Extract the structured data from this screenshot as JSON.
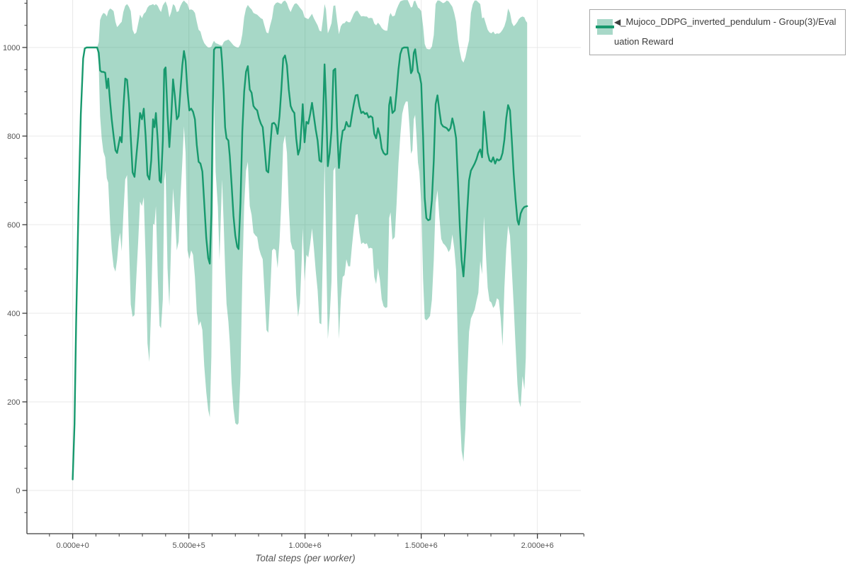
{
  "figure": {
    "colors": {
      "line": "#17996d",
      "band_fill": "rgba(23,153,109,0.38)",
      "band_solid": "#a8d8c8",
      "grid": "#e8e8e8",
      "axis": "#3c3c3c",
      "tick_label": "#545454",
      "axis_title": "#555555",
      "legend_border": "#a6a6a6",
      "legend_text": "#3b3b3b",
      "background": "#ffffff"
    }
  },
  "legend": {
    "collapse_glyph": "◀",
    "label": "_Mujoco_DDPG_inverted_pendulum - Group(3)/Evaluation Reward"
  },
  "chart_data": {
    "type": "line",
    "title": "",
    "xlabel": "Total steps (per worker)",
    "ylabel": "",
    "legend_position": "top-right",
    "grid": true,
    "series_name": "_Mujoco_DDPG_inverted_pendulum - Group(3)/Evaluation Reward",
    "band_meaning": "min-max range across Group(3) runs",
    "x_tick_values": [
      0,
      500000,
      1000000,
      1500000,
      2000000
    ],
    "x_tick_labels": [
      "0.000e+0",
      "5.000e+5",
      "1.000e+6",
      "1.500e+6",
      "2.000e+6"
    ],
    "x_minor_step": 100000,
    "y_tick_values": [
      0,
      200,
      400,
      600,
      800,
      1000
    ],
    "y_tick_labels": [
      "0",
      "200",
      "400",
      "600",
      "800",
      "1000"
    ],
    "y_minor_step": 50,
    "x_visible_domain": [
      -197000,
      2187000
    ],
    "y_visible_domain": [
      -97.6,
      1107.2
    ],
    "xlim": [
      0,
      1956000
    ],
    "ylim_data": [
      25,
      1000
    ],
    "points_format": [
      "step",
      "mean",
      "band_lower",
      "band_upper"
    ],
    "points": [
      [
        0,
        25,
        25,
        25
      ],
      [
        8000,
        150,
        140,
        160
      ],
      [
        15000,
        380,
        365,
        395
      ],
      [
        25000,
        640,
        625,
        655
      ],
      [
        35000,
        850,
        838,
        862
      ],
      [
        45000,
        975,
        968,
        982
      ],
      [
        52000,
        998,
        996,
        1000
      ],
      [
        60000,
        1000,
        1000,
        1000
      ],
      [
        75000,
        1000,
        1000,
        1000
      ],
      [
        90000,
        1000,
        1000,
        1000
      ],
      [
        105000,
        1000,
        1000,
        1000
      ],
      [
        112000,
        988,
        960,
        1012
      ],
      [
        118000,
        948,
        845,
        1062
      ],
      [
        125000,
        945,
        795,
        1072
      ],
      [
        132000,
        945,
        765,
        1078
      ],
      [
        140000,
        943,
        752,
        1076
      ],
      [
        147000,
        908,
        705,
        1070
      ],
      [
        153000,
        930,
        695,
        1082
      ],
      [
        161000,
        878,
        605,
        1088
      ],
      [
        168000,
        838,
        545,
        1086
      ],
      [
        176000,
        800,
        505,
        1082
      ],
      [
        184000,
        768,
        494,
        1058
      ],
      [
        191000,
        762,
        520,
        1046
      ],
      [
        198000,
        782,
        562,
        1050
      ],
      [
        204000,
        798,
        582,
        1054
      ],
      [
        211000,
        786,
        540,
        1058
      ],
      [
        218000,
        862,
        622,
        1080
      ],
      [
        226000,
        930,
        702,
        1094
      ],
      [
        234000,
        927,
        712,
        1098
      ],
      [
        242000,
        878,
        565,
        1092
      ],
      [
        250000,
        798,
        420,
        1082
      ],
      [
        258000,
        718,
        392,
        1040
      ],
      [
        266000,
        708,
        396,
        1030
      ],
      [
        274000,
        755,
        482,
        1034
      ],
      [
        282000,
        800,
        562,
        1054
      ],
      [
        290000,
        852,
        652,
        1074
      ],
      [
        298000,
        838,
        642,
        1066
      ],
      [
        306000,
        862,
        662,
        1076
      ],
      [
        314000,
        800,
        522,
        1080
      ],
      [
        322000,
        712,
        332,
        1090
      ],
      [
        330000,
        702,
        290,
        1095
      ],
      [
        338000,
        745,
        422,
        1096
      ],
      [
        346000,
        838,
        602,
        1098
      ],
      [
        352000,
        820,
        600,
        1095
      ],
      [
        358000,
        852,
        642,
        1098
      ],
      [
        366000,
        790,
        482,
        1094
      ],
      [
        374000,
        700,
        372,
        1085
      ],
      [
        380000,
        695,
        366,
        1080
      ],
      [
        388000,
        790,
        432,
        1095
      ],
      [
        394000,
        950,
        700,
        1100
      ],
      [
        400000,
        955,
        722,
        1104
      ],
      [
        408000,
        850,
        502,
        1092
      ],
      [
        416000,
        775,
        416,
        1068
      ],
      [
        424000,
        840,
        562,
        1080
      ],
      [
        432000,
        928,
        682,
        1098
      ],
      [
        440000,
        890,
        622,
        1094
      ],
      [
        448000,
        838,
        542,
        1080
      ],
      [
        456000,
        845,
        562,
        1082
      ],
      [
        464000,
        905,
        662,
        1094
      ],
      [
        472000,
        960,
        742,
        1102
      ],
      [
        479000,
        992,
        822,
        1106
      ],
      [
        486000,
        970,
        762,
        1102
      ],
      [
        494000,
        900,
        542,
        1098
      ],
      [
        502000,
        858,
        522,
        1085
      ],
      [
        510000,
        862,
        542,
        1086
      ],
      [
        518000,
        855,
        532,
        1084
      ],
      [
        526000,
        838,
        482,
        1078
      ],
      [
        534000,
        780,
        402,
        1058
      ],
      [
        542000,
        742,
        372,
        1040
      ],
      [
        550000,
        738,
        382,
        1036
      ],
      [
        558000,
        720,
        362,
        1020
      ],
      [
        566000,
        650,
        282,
        1010
      ],
      [
        575000,
        570,
        222,
        1004
      ],
      [
        583000,
        525,
        182,
        1000
      ],
      [
        590000,
        512,
        165,
        1000
      ],
      [
        597000,
        625,
        302,
        1002
      ],
      [
        603000,
        862,
        602,
        1010
      ],
      [
        608000,
        995,
        890,
        1015
      ],
      [
        615000,
        1000,
        720,
        1010
      ],
      [
        625000,
        1000,
        640,
        1008
      ],
      [
        632000,
        1000,
        520,
        1006
      ],
      [
        638000,
        1000,
        625,
        1005
      ],
      [
        643000,
        968,
        702,
        1004
      ],
      [
        650000,
        898,
        602,
        1012
      ],
      [
        656000,
        820,
        502,
        1015
      ],
      [
        662000,
        795,
        422,
        1016
      ],
      [
        670000,
        790,
        382,
        1018
      ],
      [
        676000,
        755,
        335,
        1015
      ],
      [
        684000,
        690,
        242,
        1010
      ],
      [
        692000,
        620,
        185,
        1005
      ],
      [
        700000,
        575,
        152,
        1002
      ],
      [
        708000,
        550,
        148,
        1000
      ],
      [
        714000,
        545,
        152,
        1000
      ],
      [
        722000,
        650,
        262,
        1008
      ],
      [
        730000,
        810,
        482,
        1030
      ],
      [
        738000,
        900,
        642,
        1068
      ],
      [
        746000,
        945,
        722,
        1088
      ],
      [
        754000,
        958,
        742,
        1096
      ],
      [
        762000,
        905,
        642,
        1090
      ],
      [
        770000,
        898,
        622,
        1086
      ],
      [
        778000,
        868,
        582,
        1078
      ],
      [
        786000,
        862,
        576,
        1076
      ],
      [
        794000,
        858,
        572,
        1074
      ],
      [
        802000,
        840,
        546,
        1070
      ],
      [
        810000,
        828,
        532,
        1066
      ],
      [
        818000,
        820,
        522,
        1064
      ],
      [
        826000,
        772,
        442,
        1048
      ],
      [
        834000,
        722,
        362,
        1034
      ],
      [
        842000,
        718,
        356,
        1032
      ],
      [
        850000,
        775,
        442,
        1050
      ],
      [
        858000,
        828,
        542,
        1066
      ],
      [
        866000,
        830,
        546,
        1094
      ],
      [
        874000,
        825,
        542,
        1100
      ],
      [
        882000,
        805,
        502,
        1102
      ],
      [
        890000,
        845,
        562,
        1100
      ],
      [
        898000,
        905,
        652,
        1098
      ],
      [
        906000,
        975,
        782,
        1104
      ],
      [
        914000,
        982,
        802,
        1106
      ],
      [
        922000,
        960,
        762,
        1100
      ],
      [
        930000,
        905,
        642,
        1088
      ],
      [
        938000,
        868,
        562,
        1080
      ],
      [
        946000,
        858,
        546,
        1090
      ],
      [
        954000,
        852,
        542,
        1098
      ],
      [
        962000,
        795,
        442,
        1100
      ],
      [
        970000,
        758,
        392,
        1096
      ],
      [
        978000,
        772,
        422,
        1090
      ],
      [
        986000,
        832,
        522,
        1085
      ],
      [
        990000,
        872,
        592,
        1082
      ],
      [
        998000,
        786,
        472,
        1068
      ],
      [
        1006000,
        832,
        532,
        1066
      ],
      [
        1014000,
        828,
        526,
        1064
      ],
      [
        1022000,
        850,
        556,
        1070
      ],
      [
        1030000,
        875,
        592,
        1076
      ],
      [
        1038000,
        845,
        548,
        1066
      ],
      [
        1046000,
        815,
        496,
        1058
      ],
      [
        1054000,
        790,
        452,
        1050
      ],
      [
        1062000,
        745,
        378,
        1038
      ],
      [
        1070000,
        742,
        375,
        1036
      ],
      [
        1078000,
        850,
        562,
        1068
      ],
      [
        1084000,
        962,
        745,
        1098
      ],
      [
        1090000,
        880,
        565,
        1086
      ],
      [
        1098000,
        732,
        342,
        1032
      ],
      [
        1106000,
        762,
        392,
        1042
      ],
      [
        1114000,
        812,
        472,
        1055
      ],
      [
        1122000,
        948,
        722,
        1094
      ],
      [
        1130000,
        952,
        730,
        1095
      ],
      [
        1138000,
        820,
        482,
        1060
      ],
      [
        1146000,
        728,
        342,
        1030
      ],
      [
        1154000,
        782,
        432,
        1048
      ],
      [
        1162000,
        812,
        482,
        1054
      ],
      [
        1170000,
        815,
        486,
        1055
      ],
      [
        1178000,
        832,
        522,
        1060
      ],
      [
        1186000,
        822,
        506,
        1057
      ],
      [
        1194000,
        822,
        506,
        1057
      ],
      [
        1202000,
        848,
        552,
        1066
      ],
      [
        1210000,
        872,
        592,
        1076
      ],
      [
        1218000,
        892,
        622,
        1082
      ],
      [
        1226000,
        893,
        624,
        1083
      ],
      [
        1234000,
        868,
        582,
        1076
      ],
      [
        1242000,
        852,
        556,
        1070
      ],
      [
        1250000,
        855,
        560,
        1071
      ],
      [
        1258000,
        850,
        556,
        1070
      ],
      [
        1266000,
        852,
        558,
        1070
      ],
      [
        1274000,
        842,
        546,
        1066
      ],
      [
        1282000,
        845,
        548,
        1067
      ],
      [
        1290000,
        842,
        546,
        1066
      ],
      [
        1298000,
        805,
        482,
        1054
      ],
      [
        1306000,
        795,
        466,
        1050
      ],
      [
        1314000,
        818,
        502,
        1056
      ],
      [
        1322000,
        802,
        476,
        1051
      ],
      [
        1330000,
        772,
        432,
        1044
      ],
      [
        1338000,
        762,
        416,
        1040
      ],
      [
        1346000,
        758,
        412,
        1038
      ],
      [
        1354000,
        760,
        414,
        1038
      ],
      [
        1362000,
        870,
        615,
        1070
      ],
      [
        1368000,
        888,
        628,
        1078
      ],
      [
        1376000,
        852,
        566,
        1070
      ],
      [
        1386000,
        858,
        572,
        1072
      ],
      [
        1394000,
        900,
        648,
        1086
      ],
      [
        1402000,
        950,
        738,
        1096
      ],
      [
        1410000,
        985,
        800,
        1104
      ],
      [
        1418000,
        998,
        850,
        1106
      ],
      [
        1426000,
        1000,
        868,
        1107
      ],
      [
        1434000,
        1000,
        878,
        1107
      ],
      [
        1442000,
        1000,
        878,
        1107
      ],
      [
        1450000,
        972,
        820,
        1098
      ],
      [
        1456000,
        942,
        760,
        1090
      ],
      [
        1462000,
        948,
        768,
        1092
      ],
      [
        1468000,
        988,
        838,
        1104
      ],
      [
        1474000,
        996,
        848,
        1106
      ],
      [
        1480000,
        970,
        798,
        1098
      ],
      [
        1486000,
        945,
        740,
        1090
      ],
      [
        1492000,
        940,
        718,
        1088
      ],
      [
        1500000,
        918,
        650,
        1082
      ],
      [
        1508000,
        800,
        478,
        1048
      ],
      [
        1515000,
        660,
        388,
        1008
      ],
      [
        1522000,
        615,
        384,
        998
      ],
      [
        1530000,
        610,
        388,
        996
      ],
      [
        1538000,
        612,
        394,
        996
      ],
      [
        1546000,
        655,
        430,
        1002
      ],
      [
        1554000,
        745,
        520,
        1028
      ],
      [
        1562000,
        872,
        648,
        1098
      ],
      [
        1570000,
        892,
        678,
        1106
      ],
      [
        1578000,
        858,
        618,
        1106
      ],
      [
        1586000,
        828,
        568,
        1103
      ],
      [
        1594000,
        822,
        558,
        1100
      ],
      [
        1602000,
        820,
        554,
        1102
      ],
      [
        1610000,
        818,
        548,
        1106
      ],
      [
        1618000,
        812,
        538,
        1104
      ],
      [
        1626000,
        818,
        546,
        1098
      ],
      [
        1634000,
        840,
        578,
        1092
      ],
      [
        1642000,
        822,
        548,
        1078
      ],
      [
        1650000,
        795,
        498,
        1058
      ],
      [
        1658000,
        700,
        328,
        1018
      ],
      [
        1666000,
        598,
        178,
        992
      ],
      [
        1674000,
        520,
        90,
        972
      ],
      [
        1682000,
        483,
        65,
        966
      ],
      [
        1690000,
        548,
        140,
        978
      ],
      [
        1698000,
        630,
        258,
        998
      ],
      [
        1706000,
        700,
        358,
        1016
      ],
      [
        1714000,
        722,
        388,
        1078
      ],
      [
        1722000,
        730,
        398,
        1098
      ],
      [
        1730000,
        738,
        408,
        1106
      ],
      [
        1738000,
        748,
        428,
        1106
      ],
      [
        1746000,
        762,
        446,
        1102
      ],
      [
        1754000,
        770,
        518,
        1098
      ],
      [
        1762000,
        752,
        488,
        1066
      ],
      [
        1770000,
        855,
        618,
        1068
      ],
      [
        1778000,
        812,
        538,
        1054
      ],
      [
        1786000,
        762,
        458,
        1040
      ],
      [
        1794000,
        745,
        428,
        1034
      ],
      [
        1802000,
        742,
        424,
        1032
      ],
      [
        1810000,
        752,
        412,
        1036
      ],
      [
        1818000,
        738,
        418,
        1030
      ],
      [
        1826000,
        748,
        434,
        1032
      ],
      [
        1834000,
        745,
        430,
        1031
      ],
      [
        1842000,
        748,
        390,
        1034
      ],
      [
        1850000,
        762,
        326,
        1040
      ],
      [
        1858000,
        792,
        458,
        1048
      ],
      [
        1866000,
        840,
        545,
        1062
      ],
      [
        1874000,
        870,
        598,
        1088
      ],
      [
        1882000,
        858,
        575,
        1078
      ],
      [
        1890000,
        790,
        498,
        1056
      ],
      [
        1898000,
        715,
        418,
        1048
      ],
      [
        1906000,
        658,
        328,
        1052
      ],
      [
        1914000,
        610,
        240,
        1058
      ],
      [
        1920000,
        600,
        202,
        1064
      ],
      [
        1928000,
        625,
        188,
        1068
      ],
      [
        1936000,
        635,
        258,
        1070
      ],
      [
        1944000,
        640,
        228,
        1068
      ],
      [
        1950000,
        641,
        300,
        1060
      ],
      [
        1956000,
        642,
        520,
        1056
      ]
    ]
  }
}
